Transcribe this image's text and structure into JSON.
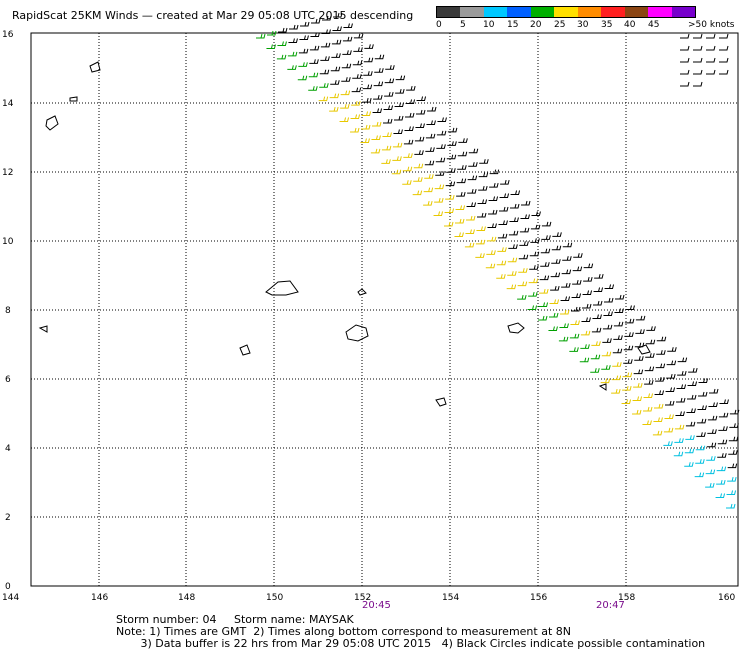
{
  "title": "RapidScat 25KM Winds — created at Mar 29 05:08 UTC 2015 descending",
  "colorbar": {
    "labels": [
      "0",
      "5",
      "10",
      "15",
      "20",
      "25",
      "30",
      "35",
      "40",
      "45",
      ">50 knots"
    ],
    "colors": [
      "#3a3a3a",
      "#9a9a9a",
      "#00c8ff",
      "#0060ff",
      "#00b000",
      "#ffe000",
      "#ff8c00",
      "#ff2020",
      "#8b4513",
      "#ff00ff",
      "#7700cc"
    ]
  },
  "axes": {
    "x_ticks": [
      "144",
      "146",
      "148",
      "150",
      "152",
      "154",
      "156",
      "158",
      "160"
    ],
    "y_ticks": [
      "0",
      "2",
      "4",
      "6",
      "8",
      "10",
      "12",
      "14",
      "16"
    ]
  },
  "time_labels": [
    "20:45",
    "20:47"
  ],
  "storm": {
    "number_label": "Storm number: 04",
    "name_label": "Storm name: MAYSAK"
  },
  "notes": [
    "Note: 1) Times are GMT  2) Times along bottom correspond to measurement at 8N",
    "       3) Data buffer is 22 hrs from Mar 29 05:08 UTC 2015   4) Black Circles indicate possible contamination"
  ]
}
